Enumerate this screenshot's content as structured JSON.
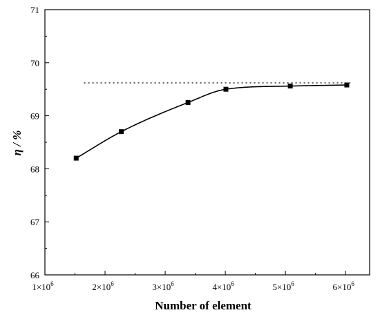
{
  "chart_data": {
    "type": "line",
    "xlabel": "Number of element",
    "ylabel": "η / %",
    "xlim": [
      1000000,
      6400000
    ],
    "ylim": [
      66,
      71
    ],
    "x_ticks": [
      1000000,
      2000000,
      3000000,
      4000000,
      5000000,
      6000000
    ],
    "x_tick_labels": [
      {
        "base": "1×10",
        "exp": "6"
      },
      {
        "base": "2×10",
        "exp": "6"
      },
      {
        "base": "3×10",
        "exp": "6"
      },
      {
        "base": "4×10",
        "exp": "6"
      },
      {
        "base": "5×10",
        "exp": "6"
      },
      {
        "base": "6×10",
        "exp": "6"
      }
    ],
    "y_ticks": [
      66,
      67,
      68,
      69,
      70,
      71
    ],
    "y_tick_labels": [
      "66",
      "67",
      "68",
      "69",
      "70",
      "71"
    ],
    "series": [
      {
        "marker": "square",
        "line": "smooth solid",
        "x": [
          1520000,
          2270000,
          3380000,
          4010000,
          5080000,
          6020000
        ],
        "y": [
          68.2,
          68.7,
          69.25,
          69.5,
          69.56,
          69.58
        ]
      }
    ],
    "reference_line": {
      "style": "dotted",
      "y": 69.62,
      "x_from": 1650000,
      "x_to": 6080000
    },
    "grid": false,
    "legend": "none",
    "colors": {
      "line": "#000000",
      "marker": "#000000",
      "axis": "#000000"
    }
  }
}
